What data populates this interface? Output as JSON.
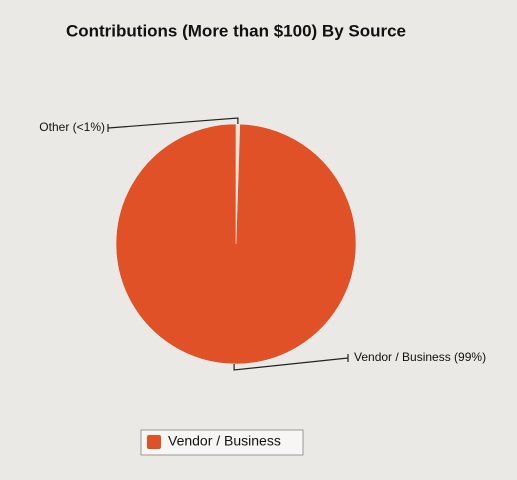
{
  "chart_data": {
    "type": "pie",
    "title": "Contributions (More than $100) By Source",
    "categories": [
      "Other",
      "Vendor / Business"
    ],
    "values": [
      0.5,
      99
    ],
    "value_labels": [
      "Other (<1%)",
      "Vendor / Business (99%)"
    ],
    "colors": [
      "#f3e3d6",
      "#e15128"
    ]
  }
}
